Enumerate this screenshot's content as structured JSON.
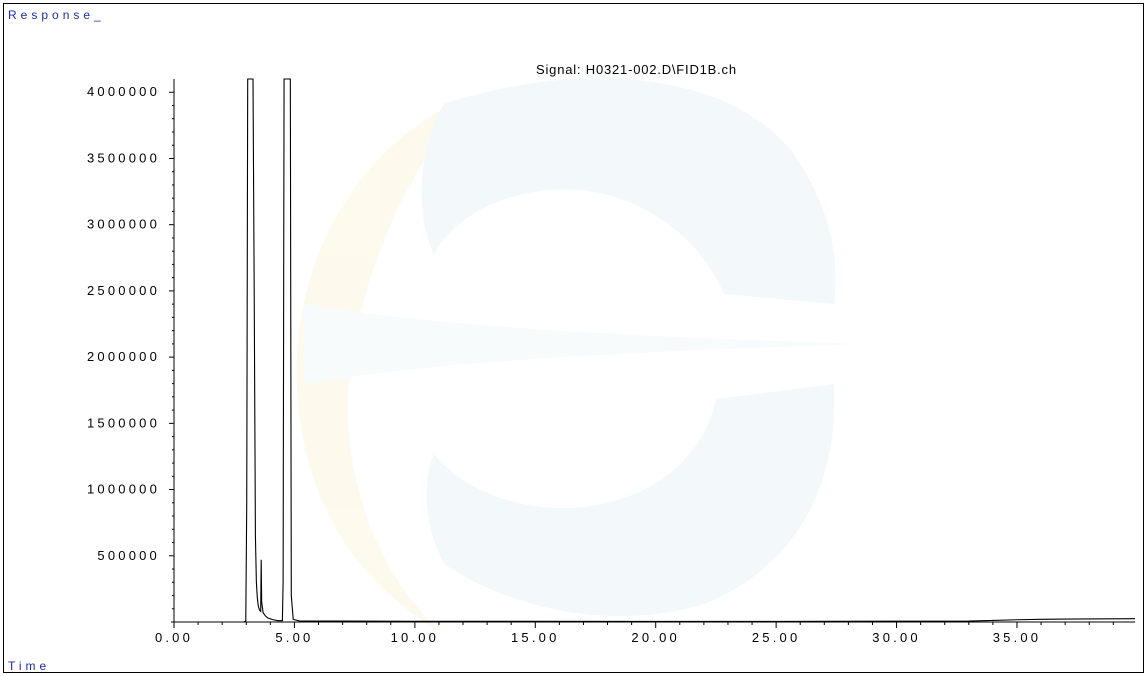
{
  "chart_data": {
    "type": "line",
    "title": "Signal: H0321-002.D\\FID1B.ch",
    "xlabel": "Time",
    "ylabel": "Response_",
    "xlim": [
      0.0,
      39.9
    ],
    "ylim": [
      0,
      4100000
    ],
    "x_ticks": [
      0.0,
      5.0,
      10.0,
      15.0,
      20.0,
      25.0,
      30.0,
      35.0
    ],
    "x_tick_labels": [
      "0.00",
      "5.00",
      "10.00",
      "15.00",
      "20.00",
      "25.00",
      "30.00",
      "35.00"
    ],
    "y_ticks": [
      500000,
      1000000,
      1500000,
      2000000,
      2500000,
      3000000,
      3500000,
      4000000
    ],
    "y_tick_labels": [
      "500000",
      "1000000",
      "1500000",
      "2000000",
      "2500000",
      "3000000",
      "3500000",
      "4000000"
    ],
    "grid": false,
    "series": [
      {
        "x": [
          0.0,
          2.9,
          2.98,
          3.02,
          3.06,
          3.1,
          3.15,
          3.2,
          3.28,
          3.33,
          3.38,
          3.42,
          3.46,
          3.5,
          3.55,
          3.6,
          3.62,
          3.64,
          3.7,
          3.8,
          3.9,
          4.1,
          4.3,
          4.5,
          4.53,
          4.57,
          4.6,
          4.65,
          4.75,
          4.8,
          4.83,
          4.87,
          4.95,
          5.2,
          10.0,
          15.0,
          20.0,
          25.0,
          30.0,
          33.0,
          34.0,
          35.0,
          36.0,
          37.0,
          39.9
        ],
        "y": [
          0,
          0,
          8000,
          900000,
          4100000,
          4100000,
          4100000,
          4100000,
          4100000,
          2500000,
          650000,
          300000,
          180000,
          120000,
          90000,
          80000,
          470000,
          150000,
          70000,
          45000,
          30000,
          18000,
          10000,
          10000,
          300000,
          4100000,
          4100000,
          4100000,
          4100000,
          4100000,
          4100000,
          200000,
          20000,
          8000,
          5000,
          5000,
          4000,
          4000,
          6000,
          7000,
          12000,
          17000,
          20000,
          22000,
          25000
        ]
      }
    ],
    "colors": {
      "axes": "#000000",
      "trace": "#000000",
      "labels": "#1a2bb0"
    }
  }
}
